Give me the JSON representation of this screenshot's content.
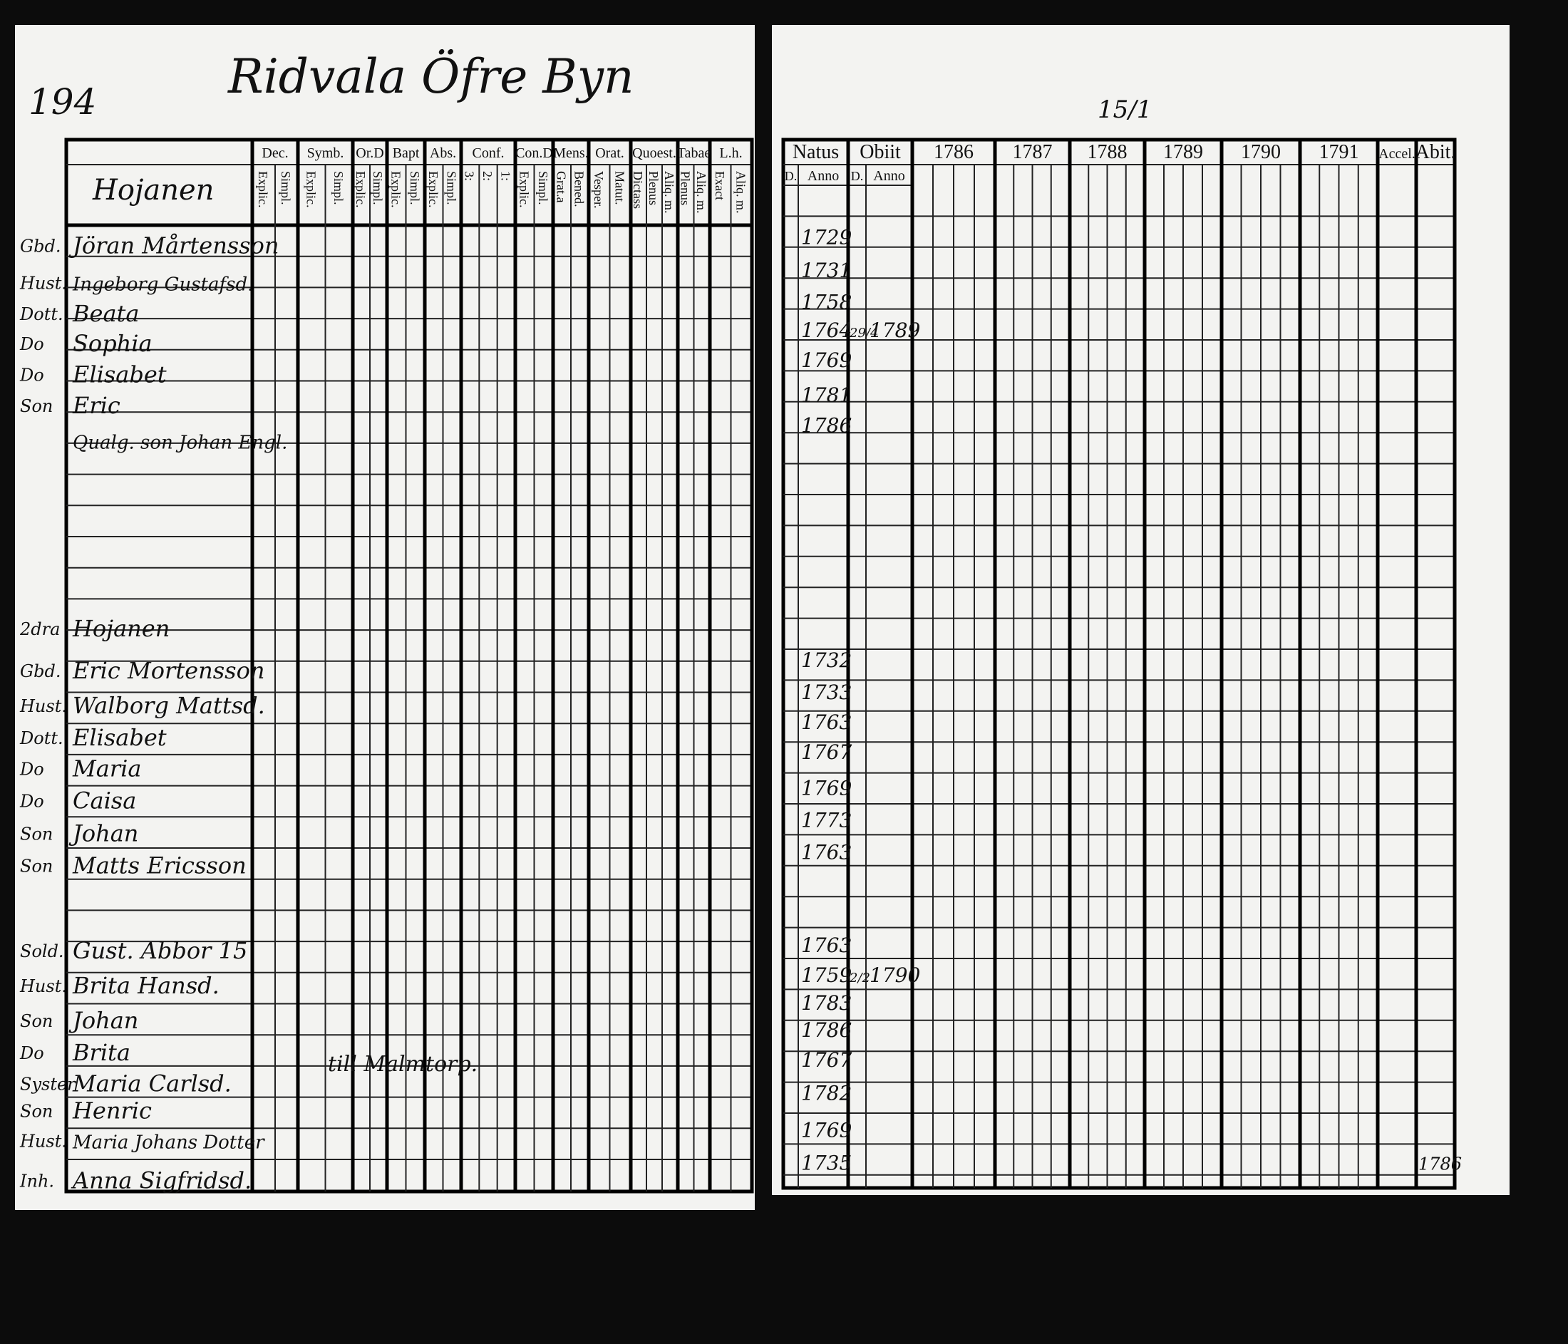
{
  "header": {
    "page_number": "194",
    "title": "Ridvala Öfre Byn",
    "folio": "15/1"
  },
  "left_table": {
    "name_header": "Hojanen",
    "columns": [
      {
        "group": "Dec.",
        "sub": [
          "Explic.",
          "Simpl."
        ]
      },
      {
        "group": "Symb.",
        "sub": [
          "Explic.",
          "Simpl."
        ]
      },
      {
        "group": "Or.D",
        "sub": [
          "Explic.",
          "Simpl."
        ]
      },
      {
        "group": "Bapt",
        "sub": [
          "Explic.",
          "Simpl."
        ]
      },
      {
        "group": "Abs.",
        "sub": [
          "Explic.",
          "Simpl."
        ]
      },
      {
        "group": "Conf.",
        "sub": [
          "3:",
          "2:",
          "1:"
        ]
      },
      {
        "group": "Con.D",
        "sub": [
          "Explic.",
          "Simpl."
        ]
      },
      {
        "group": "Mens.",
        "sub": [
          "Grat.a",
          "Bened."
        ]
      },
      {
        "group": "Orat.",
        "sub": [
          "Vesper.",
          "Matut."
        ]
      },
      {
        "group": "Quoest.",
        "sub": [
          "Dictass",
          "Plenus",
          "Aliq. m."
        ]
      },
      {
        "group": "Tabae",
        "sub": [
          "Plenus",
          "Aliq. m."
        ]
      },
      {
        "group": "L.h.",
        "sub": [
          "Exact",
          "Aliq. m."
        ]
      }
    ],
    "rows": [
      {
        "role": "Gbd.",
        "name": "Jöran Mårtensson"
      },
      {
        "role": "Hust.",
        "name": "Ingeborg Gustafsd."
      },
      {
        "role": "Dott.",
        "name": "Beata"
      },
      {
        "role": "Do",
        "name": "Sophia"
      },
      {
        "role": "Do",
        "name": "Elisabet"
      },
      {
        "role": "Son",
        "name": "Eric"
      },
      {
        "name": "Qualg. son Johan Engl."
      },
      {
        "role": "2dra",
        "name": "Hojanen"
      },
      {
        "role": "Gbd.",
        "name": "Eric Mortensson"
      },
      {
        "role": "Hust.",
        "name": "Walborg Mattsd."
      },
      {
        "role": "Dott.",
        "name": "Elisabet"
      },
      {
        "role": "Do",
        "name": "Maria"
      },
      {
        "role": "Do",
        "name": "Caisa"
      },
      {
        "role": "Son",
        "name": "Johan"
      },
      {
        "role": "Son",
        "name": "Matts Ericsson"
      },
      {
        "role": "Sold.",
        "name": "Gust. Abbor 15"
      },
      {
        "role": "Hust.",
        "name": "Brita Hansd."
      },
      {
        "role": "Son",
        "name": "Johan"
      },
      {
        "role": "Do",
        "name": "Brita"
      },
      {
        "role": "Syster",
        "name": "Maria Carlsd."
      },
      {
        "role": "Son",
        "name": "Henric"
      },
      {
        "role": "Hust.",
        "name": "Maria Johans Dotter"
      },
      {
        "role": "Inh.",
        "name": "Anna Sigfridsd."
      }
    ],
    "note": "till Malmtorp."
  },
  "right_table": {
    "columns": [
      {
        "group": "Natus",
        "sub": [
          "D.",
          "Anno"
        ]
      },
      {
        "group": "Obiit",
        "sub": [
          "D.",
          "Anno"
        ]
      },
      {
        "group": "1786"
      },
      {
        "group": "1787"
      },
      {
        "group": "1788"
      },
      {
        "group": "1789"
      },
      {
        "group": "1790"
      },
      {
        "group": "1791"
      },
      {
        "group": "Accel."
      },
      {
        "group": "Abit."
      }
    ],
    "rows": [
      {
        "natus_year": "1729"
      },
      {
        "natus_year": "1731"
      },
      {
        "natus_year": "1758"
      },
      {
        "natus_year": "1764",
        "obiit_day": "29/4",
        "obiit_year": "1789"
      },
      {
        "natus_year": "1769"
      },
      {
        "natus_year": "1781"
      },
      {
        "natus_year": "1786"
      },
      {
        "natus_year": "1732"
      },
      {
        "natus_year": "1733"
      },
      {
        "natus_year": "1763"
      },
      {
        "natus_year": "1767"
      },
      {
        "natus_year": "1769"
      },
      {
        "natus_year": "1773"
      },
      {
        "natus_year": "1763"
      },
      {
        "natus_year": "1763"
      },
      {
        "natus_year": "1759",
        "obiit_day": "2/2",
        "obiit_year": "1790"
      },
      {
        "natus_year": "1783"
      },
      {
        "natus_year": "1786"
      },
      {
        "natus_year": "1767"
      },
      {
        "natus_year": "1782"
      },
      {
        "natus_year": "1769"
      },
      {
        "natus_year": "1735",
        "abit": "1786"
      }
    ]
  }
}
